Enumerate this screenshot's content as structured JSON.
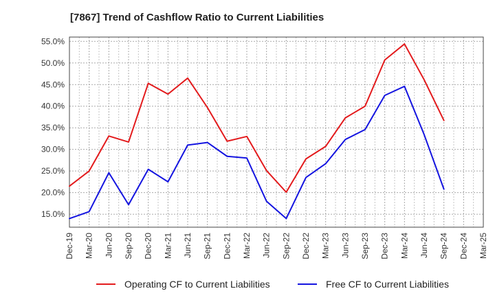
{
  "chart_data": {
    "type": "line",
    "title": "[7867]  Trend of Cashflow Ratio to Current Liabilities",
    "xlabel": "",
    "ylabel": "",
    "x": [
      "Dec-19",
      "Mar-20",
      "Jun-20",
      "Sep-20",
      "Dec-20",
      "Mar-21",
      "Jun-21",
      "Sep-21",
      "Dec-21",
      "Mar-22",
      "Jun-22",
      "Sep-22",
      "Dec-22",
      "Mar-23",
      "Jun-23",
      "Sep-23",
      "Dec-23",
      "Mar-24",
      "Jun-24",
      "Sep-24",
      "Dec-24",
      "Mar-25"
    ],
    "x_ticks": [
      "Dec-19",
      "Mar-20",
      "Jun-20",
      "Sep-20",
      "Dec-20",
      "Mar-21",
      "Jun-21",
      "Sep-21",
      "Dec-21",
      "Mar-22",
      "Jun-22",
      "Sep-22",
      "Dec-22",
      "Mar-23",
      "Jun-23",
      "Sep-23",
      "Dec-23",
      "Mar-24",
      "Jun-24",
      "Sep-24",
      "Dec-24",
      "Mar-25"
    ],
    "y_ticks": [
      "15.0%",
      "20.0%",
      "25.0%",
      "30.0%",
      "35.0%",
      "40.0%",
      "45.0%",
      "50.0%",
      "55.0%"
    ],
    "y_tick_values": [
      15,
      20,
      25,
      30,
      35,
      40,
      45,
      50,
      55
    ],
    "ylim": [
      12,
      56
    ],
    "grid": true,
    "legend_position": "bottom",
    "series": [
      {
        "name": "Operating CF to Current Liabilities",
        "color": "#e31a1c",
        "values": [
          21.5,
          25.0,
          33.1,
          31.7,
          45.3,
          42.8,
          46.5,
          39.7,
          31.9,
          33.0,
          25.1,
          20.1,
          27.8,
          30.7,
          37.3,
          40.0,
          50.7,
          54.4,
          46.1,
          36.7,
          null,
          null
        ]
      },
      {
        "name": "Free CF to Current Liabilities",
        "color": "#1414e0",
        "values": [
          14.0,
          15.6,
          24.6,
          17.2,
          25.4,
          22.5,
          31.0,
          31.6,
          28.4,
          28.0,
          18.0,
          14.0,
          23.5,
          26.7,
          32.3,
          34.6,
          42.5,
          44.6,
          33.4,
          20.8,
          null,
          null
        ]
      }
    ]
  }
}
